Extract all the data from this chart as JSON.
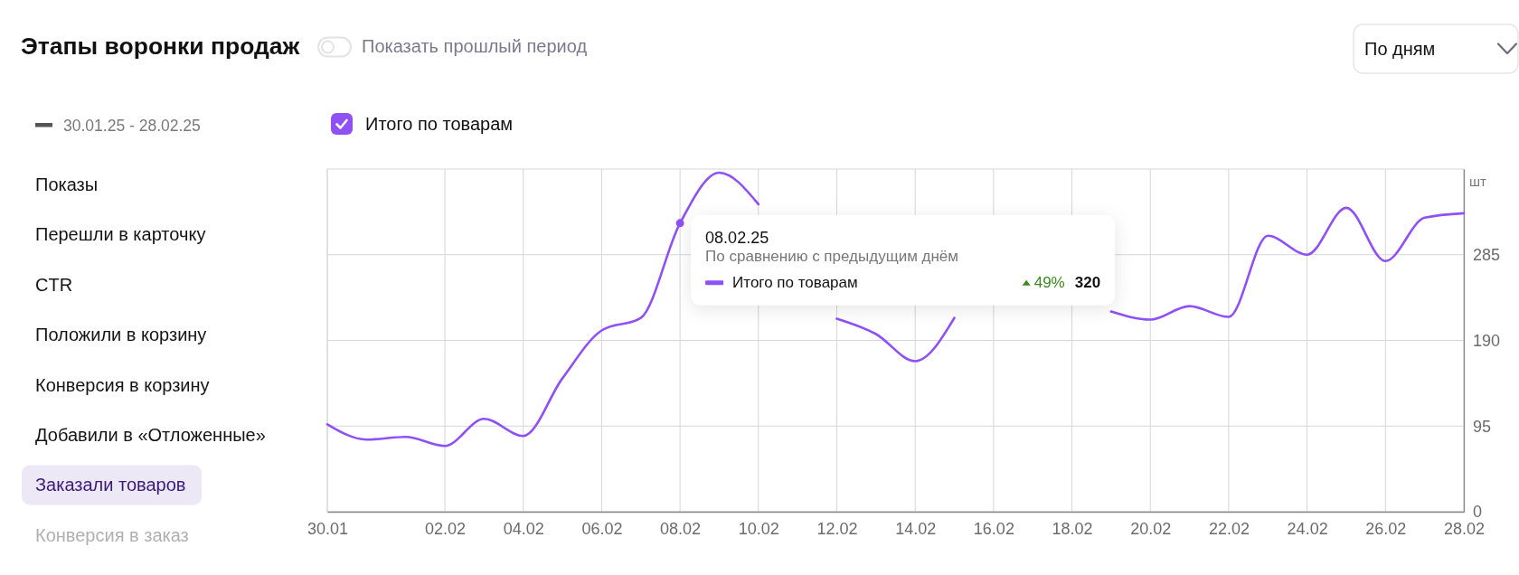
{
  "chart_data": {
    "type": "line",
    "title": "Этапы воронки продаж",
    "ylabel": "шт",
    "x": [
      "--01-30",
      "--01-31",
      "--02-01",
      "--02-02",
      "--02-03",
      "--02-04",
      "--02-05",
      "--02-06",
      "--02-07",
      "--02-08",
      "--02-09",
      "--02-10",
      "--02-11",
      "--02-12",
      "--02-13",
      "--02-14",
      "--02-15",
      "--02-16",
      "--02-17",
      "--02-18",
      "--02-19",
      "--02-20",
      "--02-21",
      "--02-22",
      "--02-23",
      "--02-24",
      "--02-25",
      "--02-26",
      "--02-27",
      "--02-28"
    ],
    "series": [
      {
        "name": "Итого по товарам",
        "color": "#8f50f5",
        "values": [
          97,
          80,
          83,
          73,
          103,
          84,
          148,
          201,
          215,
          320,
          376,
          341,
          null,
          214,
          197,
          167,
          215,
          null,
          null,
          null,
          222,
          213,
          228,
          216,
          306,
          285,
          337,
          278,
          326,
          331
        ]
      },
      {
        "type": "scatter",
        "color": "#8f50f5",
        "x": [
          "--02-08"
        ],
        "values": [
          320
        ]
      }
    ],
    "xlim": [
      "--01-30",
      "--02-28"
    ],
    "xticks": [
      {
        "value": "--01-30",
        "label": "30.01"
      },
      {
        "value": "--02-02",
        "label": "02.02"
      },
      {
        "value": "--02-04",
        "label": "04.02"
      },
      {
        "value": "--02-06",
        "label": "06.02"
      },
      {
        "value": "--02-08",
        "label": "08.02"
      },
      {
        "value": "--02-10",
        "label": "10.02"
      },
      {
        "value": "--02-12",
        "label": "12.02"
      },
      {
        "value": "--02-14",
        "label": "14.02"
      },
      {
        "value": "--02-16",
        "label": "16.02"
      },
      {
        "value": "--02-18",
        "label": "18.02"
      },
      {
        "value": "--02-20",
        "label": "20.02"
      },
      {
        "value": "--02-22",
        "label": "22.02"
      },
      {
        "value": "--02-24",
        "label": "24.02"
      },
      {
        "value": "--02-26",
        "label": "26.02"
      },
      {
        "value": "--02-28",
        "label": "28.02"
      }
    ],
    "ylim": [
      0,
      380
    ],
    "yticks": [
      0,
      95,
      190,
      285
    ],
    "grid": true,
    "legend": "top left",
    "annotations": [
      "Показать прошлый период",
      "По дням",
      "30.01.25 - 28.02.25",
      "Показы",
      "Перешли в карточку",
      "CTR",
      "Положили в корзину",
      "Конверсия в корзину",
      "Добавили в «Отложенные»",
      "Заказали товаров",
      "Конверсия в заказ",
      {
        "text": "08.02.25",
        "x": "--02-08",
        "y": 320
      },
      "По сравнению с предыдущим днём",
      "49%",
      "320"
    ]
  }
}
